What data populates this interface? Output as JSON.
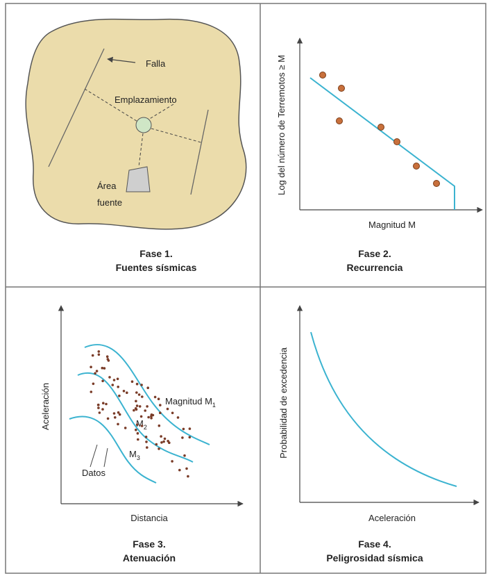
{
  "panels": [
    {
      "labels": {
        "fault": "Falla",
        "site": "Emplazamiento",
        "source_line1": "Área",
        "source_line2": "fuente"
      },
      "caption": {
        "line1": "Fase 1.",
        "line2": "Fuentes sísmicas"
      }
    },
    {
      "labels": {
        "y_axis": "Log del número de Terremotos ≥ M",
        "x_axis": "Magnitud M"
      },
      "caption": {
        "line1": "Fase 2.",
        "line2": "Recurrencia"
      }
    },
    {
      "labels": {
        "y_axis": "Aceleración",
        "x_axis": "Distancia",
        "magnitude1": "Magnitud M",
        "magnitude1_sub": "1",
        "magnitude2": "M",
        "magnitude2_sub": "2",
        "magnitude3": "M",
        "magnitude3_sub": "3",
        "data": "Datos"
      },
      "caption": {
        "line1": "Fase 3.",
        "line2": "Atenuación"
      }
    },
    {
      "labels": {
        "y_axis": "Probabilidad de excedencia",
        "x_axis": "Aceleración"
      },
      "caption": {
        "line1": "Fase 4.",
        "line2": "Peligrosidad sísmica"
      }
    }
  ]
}
